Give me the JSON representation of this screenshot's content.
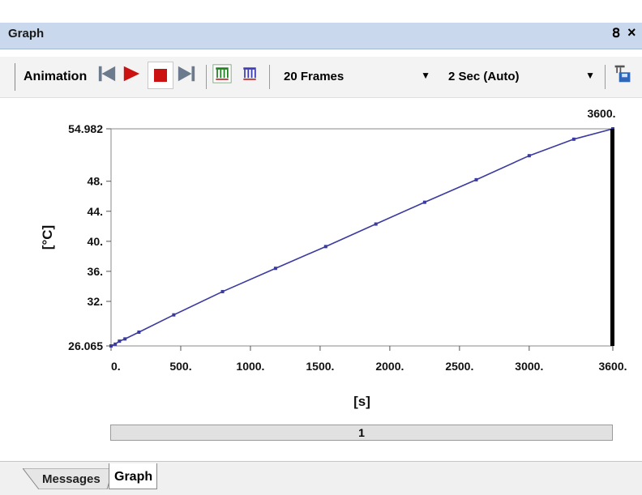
{
  "panel": {
    "title": "Graph",
    "pin_icon": "pin-icon",
    "close_icon": "close-icon"
  },
  "toolbar": {
    "animation_label": "Animation",
    "buttons": [
      "skip-to-start-icon",
      "play-icon",
      "stop-icon",
      "skip-to-end-icon",
      "distributed-frames-icon",
      "result-frames-icon",
      "export-video-icon"
    ],
    "frames_value": "20 Frames",
    "duration_value": "2 Sec (Auto)"
  },
  "chart_data": {
    "type": "line",
    "xlabel": "[s]",
    "ylabel": "[°C]",
    "xlim": [
      0,
      3600
    ],
    "ylim": [
      26.065,
      54.982
    ],
    "x_ticks": [
      "0.",
      "500.",
      "1000.",
      "1500.",
      "2000.",
      "2500.",
      "3000.",
      "3600."
    ],
    "x_tick_values": [
      0,
      500,
      1000,
      1500,
      2000,
      2500,
      3000,
      3600
    ],
    "y_ticks": [
      "26.065",
      "32.",
      "36.",
      "40.",
      "44.",
      "48.",
      "54.982"
    ],
    "y_tick_values": [
      26.065,
      32,
      36,
      40,
      44,
      48,
      54.982
    ],
    "marker_label": "3600.",
    "marker_x": 3600,
    "series": [
      {
        "color": "#3a3aa0",
        "x": [
          0,
          30,
          60,
          100,
          200,
          450,
          800,
          1180,
          1540,
          1900,
          2250,
          2620,
          3000,
          3320,
          3600
        ],
        "y": [
          26.065,
          26.3,
          26.7,
          27.0,
          27.9,
          30.2,
          33.3,
          36.4,
          39.3,
          42.3,
          45.2,
          48.2,
          51.4,
          53.6,
          54.982
        ]
      }
    ],
    "grid": false,
    "colors": {
      "line": "#3a3aa0",
      "marker_bar": "#000000"
    }
  },
  "frame_bar": {
    "label": "1"
  },
  "tabs": [
    {
      "label": "Messages",
      "active": false
    },
    {
      "label": "Graph",
      "active": true
    }
  ]
}
